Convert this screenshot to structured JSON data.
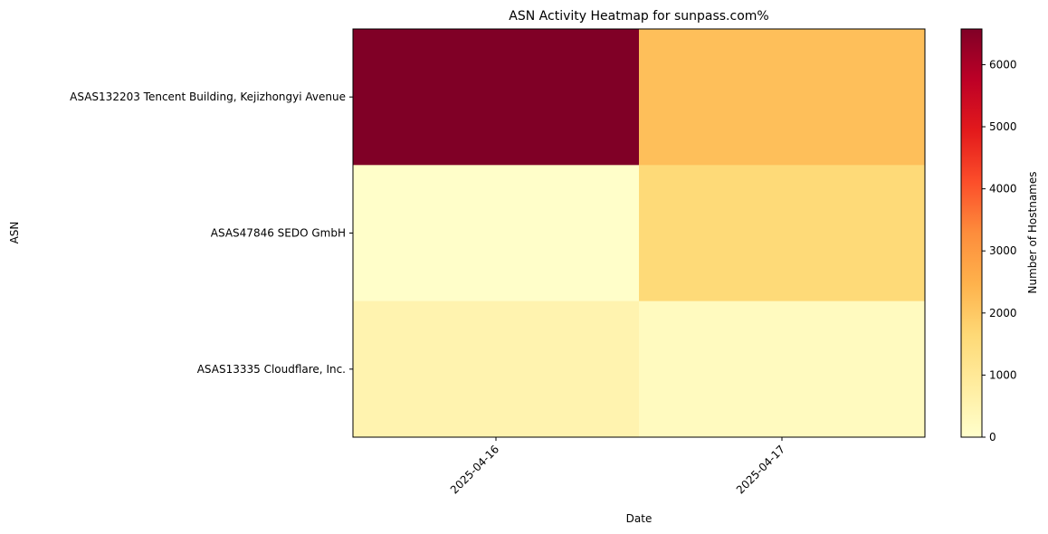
{
  "chart_data": {
    "type": "heatmap",
    "title": "ASN Activity Heatmap for sunpass.com%",
    "xlabel": "Date",
    "ylabel": "ASN",
    "x_categories": [
      "2025-04-16",
      "2025-04-17"
    ],
    "y_categories": [
      "ASAS132203 Tencent Building, Kejizhongyi Avenue",
      "ASAS47846 SEDO GmbH",
      "ASAS13335 Cloudflare, Inc."
    ],
    "values": [
      [
        6575,
        2200
      ],
      [
        50,
        1600
      ],
      [
        550,
        250
      ]
    ],
    "colorbar": {
      "label": "Number of Hostnames",
      "range": [
        0,
        6575
      ],
      "ticks": [
        0,
        1000,
        2000,
        3000,
        4000,
        5000,
        6000
      ],
      "colormap": [
        "#ffffcc",
        "#ffeda0",
        "#fed976",
        "#feb24c",
        "#fd8d3c",
        "#fc4e2a",
        "#e31a1c",
        "#bd0026",
        "#800026"
      ]
    },
    "grid": false
  }
}
